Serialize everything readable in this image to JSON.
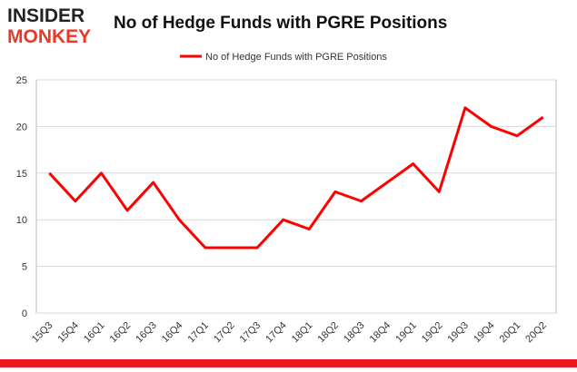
{
  "logo": {
    "line1": "INSIDER",
    "line2": "MONKEY"
  },
  "chart_data": {
    "type": "line",
    "title": "No of Hedge Funds with PGRE Positions",
    "categories": [
      "15Q3",
      "15Q4",
      "16Q1",
      "16Q2",
      "16Q3",
      "16Q4",
      "17Q1",
      "17Q2",
      "17Q3",
      "17Q4",
      "18Q1",
      "18Q2",
      "18Q3",
      "18Q4",
      "19Q1",
      "19Q2",
      "19Q3",
      "19Q4",
      "20Q1",
      "20Q2"
    ],
    "series": [
      {
        "name": "No of Hedge Funds with PGRE Positions",
        "color": "#ff0000",
        "values": [
          15,
          12,
          15,
          11,
          14,
          10,
          7,
          7,
          7,
          10,
          9,
          13,
          12,
          14,
          16,
          13,
          22,
          20,
          19,
          21
        ]
      }
    ],
    "ylim": [
      0,
      25
    ],
    "yticks": [
      0,
      5,
      10,
      15,
      20,
      25
    ],
    "grid": true
  }
}
